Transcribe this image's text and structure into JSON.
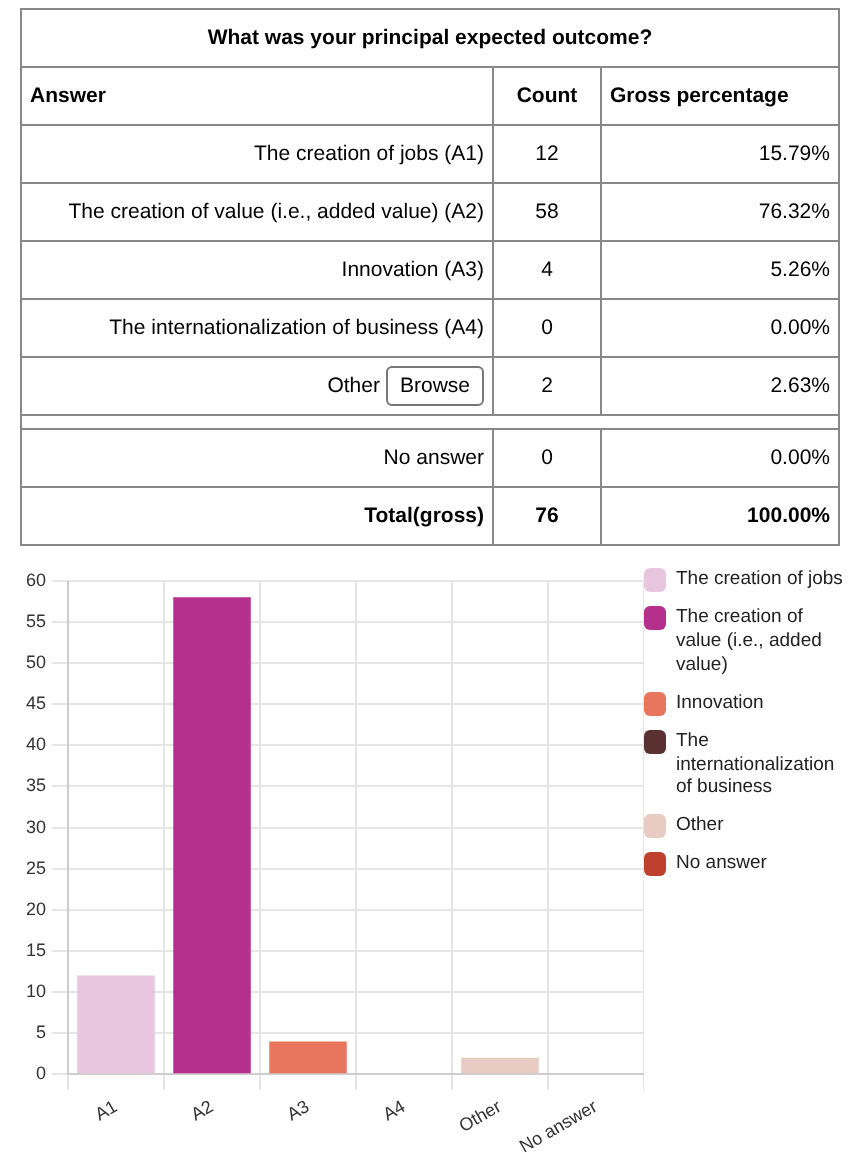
{
  "chart_data": [
    {
      "type": "other",
      "title": "What was your principal expected outcome?",
      "ylabel": "Answer",
      "categories": [
        "The creation of jobs (A1)",
        "The creation of value (i.e., added value) (A2)",
        "Innovation (A3)",
        "The internationalization of business (A4)",
        "Other",
        null,
        "No answer",
        "Total(gross)"
      ],
      "series": [
        {
          "name": "Count",
          "values": [
            12,
            58,
            4,
            0,
            2,
            null,
            0,
            76
          ],
          "value_labels": [
            "12",
            "58",
            "4",
            "0",
            "2",
            null,
            "0",
            "76"
          ]
        },
        {
          "name": "Gross percentage",
          "values": [
            15.79,
            76.32,
            5.26,
            0,
            2.63,
            null,
            0,
            100
          ],
          "value_labels": [
            "15.79%",
            "76.32%",
            "5.26%",
            "0.00%",
            "2.63%",
            null,
            "0.00%",
            "100.00%"
          ]
        }
      ],
      "annotations": [
        {
          "text": "Browse",
          "y": "Other"
        }
      ],
      "data_labels": true
    },
    {
      "type": "bar",
      "stacked": true,
      "categories": [
        "A1",
        "A2",
        "A3",
        "A4",
        "Other",
        "No answer"
      ],
      "series": [
        {
          "name": "The creation of jobs",
          "color": "#e8c6df",
          "values": [
            12,
            null,
            null,
            null,
            null,
            null
          ]
        },
        {
          "name": "The creation of value (i.e., added value)",
          "color": "#b5308c",
          "values": [
            null,
            58,
            null,
            null,
            null,
            null
          ]
        },
        {
          "name": "Innovation",
          "color": "#e8765e",
          "values": [
            null,
            null,
            4,
            null,
            null,
            null
          ]
        },
        {
          "name": "The internationalization of business",
          "color": "#5a3030",
          "values": [
            null,
            null,
            null,
            0,
            null,
            null
          ]
        },
        {
          "name": "Other",
          "color": "#e8cbc3",
          "values": [
            null,
            null,
            null,
            null,
            2,
            null
          ]
        },
        {
          "name": "No answer",
          "color": "#c0402f",
          "values": [
            null,
            null,
            null,
            null,
            null,
            0
          ]
        }
      ],
      "ylim": [
        0,
        60
      ],
      "yticks": [
        0,
        5,
        10,
        15,
        20,
        25,
        30,
        35,
        40,
        45,
        50,
        55,
        60
      ],
      "grid": true,
      "legend": "right"
    }
  ]
}
